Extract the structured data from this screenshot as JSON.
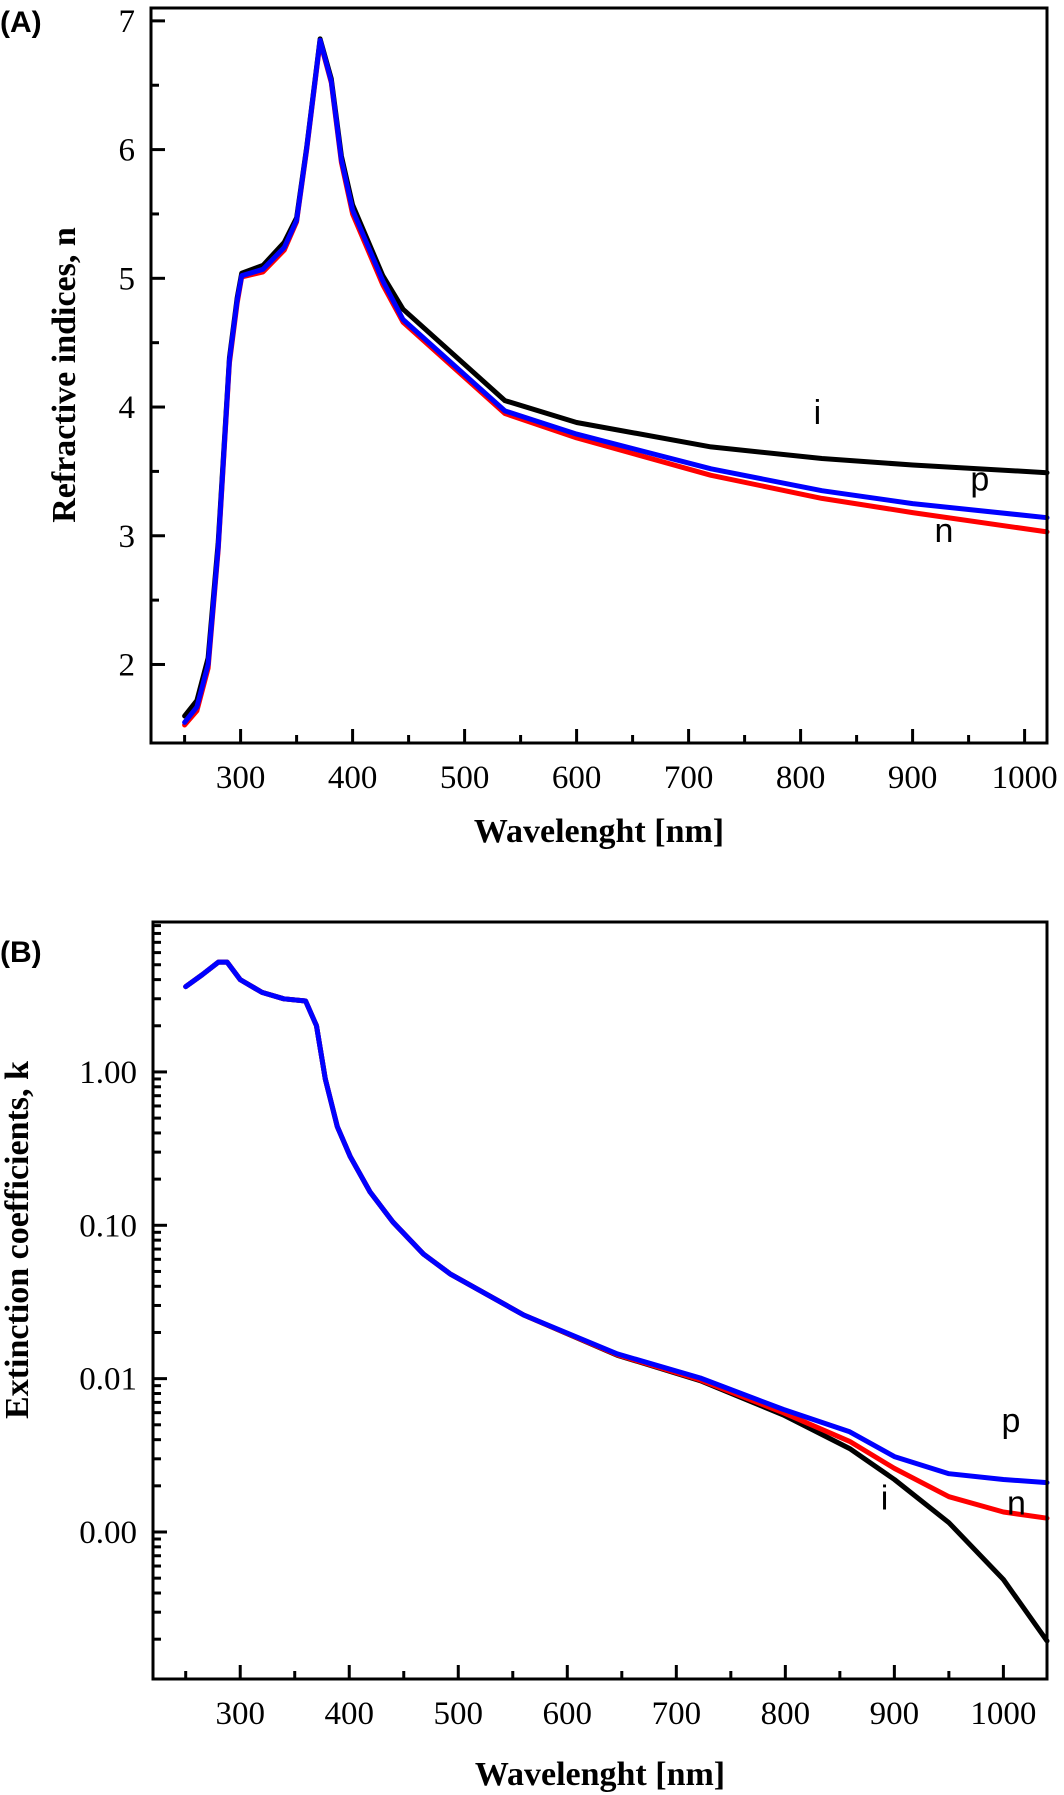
{
  "chart_data": [
    {
      "panel_label": "(A)",
      "type": "line",
      "title": "",
      "xlabel": "Wavelenght [nm]",
      "ylabel": "Refractive indices, n",
      "xlim": [
        220,
        1020
      ],
      "ylim": [
        1.39,
        7.1
      ],
      "yscale": "linear",
      "grid": false,
      "xticks": [
        300,
        400,
        500,
        600,
        700,
        800,
        900,
        1000
      ],
      "xtick_labels": [
        "300",
        "400",
        "500",
        "600",
        "700",
        "800",
        "900",
        "1000"
      ],
      "yticks": [
        2,
        3,
        4,
        5,
        6,
        7
      ],
      "ytick_labels": [
        "2",
        "3",
        "4",
        "5",
        "6",
        "7"
      ],
      "series": [
        {
          "name": "i",
          "color": "#000000",
          "x": [
            250,
            261,
            271,
            280,
            290,
            297,
            301,
            320,
            339,
            350,
            359,
            371,
            381,
            390,
            400,
            427,
            445,
            536,
            600,
            720,
            819,
            900,
            1020
          ],
          "y": [
            1.6,
            1.72,
            2.05,
            2.95,
            4.38,
            4.85,
            5.04,
            5.1,
            5.28,
            5.47,
            6.02,
            6.86,
            6.55,
            5.95,
            5.57,
            5.02,
            4.76,
            4.05,
            3.88,
            3.69,
            3.6,
            3.55,
            3.49
          ]
        },
        {
          "name": "n",
          "color": "#ff0000",
          "x": [
            250,
            261,
            271,
            280,
            290,
            297,
            301,
            320,
            339,
            350,
            359,
            371,
            381,
            390,
            400,
            427,
            445,
            536,
            600,
            720,
            819,
            900,
            1020
          ],
          "y": [
            1.53,
            1.64,
            1.97,
            2.89,
            4.34,
            4.81,
            5.01,
            5.05,
            5.22,
            5.44,
            6.0,
            6.84,
            6.52,
            5.9,
            5.5,
            4.95,
            4.66,
            3.95,
            3.76,
            3.47,
            3.29,
            3.18,
            3.03
          ]
        },
        {
          "name": "p",
          "color": "#0000ff",
          "x": [
            250,
            261,
            271,
            280,
            290,
            297,
            301,
            320,
            339,
            350,
            359,
            371,
            381,
            390,
            400,
            427,
            445,
            536,
            600,
            720,
            819,
            900,
            1020
          ],
          "y": [
            1.55,
            1.67,
            2.0,
            2.91,
            4.36,
            4.83,
            5.02,
            5.07,
            5.24,
            5.45,
            6.01,
            6.85,
            6.53,
            5.92,
            5.53,
            4.98,
            4.68,
            3.97,
            3.79,
            3.52,
            3.35,
            3.25,
            3.14
          ]
        }
      ],
      "annotations": [
        {
          "text": "i",
          "x": 815,
          "y": 3.87
        },
        {
          "text": "p",
          "x": 960,
          "y": 3.35
        },
        {
          "text": "n",
          "x": 928,
          "y": 2.95
        }
      ]
    },
    {
      "panel_label": "(B)",
      "type": "line",
      "title": "",
      "xlabel": "Wavelenght [nm]",
      "ylabel": "Extinction coefficients, k",
      "xlim": [
        220,
        1040
      ],
      "ylim": [
        0.00011,
        9.5
      ],
      "yscale": "log",
      "grid": false,
      "xticks": [
        300,
        400,
        500,
        600,
        700,
        800,
        900,
        1000
      ],
      "xtick_labels": [
        "300",
        "400",
        "500",
        "600",
        "700",
        "800",
        "900",
        "1000"
      ],
      "yticks": [
        1,
        0.1,
        0.01,
        0.001
      ],
      "ytick_labels": [
        "1.00",
        "0.10",
        "0.01",
        "0.00"
      ],
      "series": [
        {
          "name": "i",
          "color": "#000000",
          "x": [
            250,
            265,
            280,
            288,
            300,
            320,
            340,
            360,
            370,
            378,
            389,
            401,
            419,
            440,
            468,
            493,
            560,
            646,
            722,
            798,
            859,
            900,
            950,
            1000,
            1040
          ],
          "y": [
            3.6,
            4.3,
            5.2,
            5.2,
            4.0,
            3.3,
            3.0,
            2.9,
            2.0,
            0.9,
            0.44,
            0.28,
            0.165,
            0.105,
            0.065,
            0.048,
            0.026,
            0.0142,
            0.0097,
            0.0058,
            0.0035,
            0.0022,
            0.00115,
            0.00049,
            0.000195
          ]
        },
        {
          "name": "n",
          "color": "#ff0000",
          "x": [
            250,
            265,
            280,
            288,
            300,
            320,
            340,
            360,
            370,
            378,
            389,
            401,
            419,
            440,
            468,
            493,
            560,
            646,
            722,
            798,
            859,
            900,
            950,
            1000,
            1040
          ],
          "y": [
            3.6,
            4.3,
            5.2,
            5.2,
            4.0,
            3.3,
            3.0,
            2.9,
            2.0,
            0.9,
            0.44,
            0.28,
            0.165,
            0.105,
            0.065,
            0.048,
            0.026,
            0.0143,
            0.0098,
            0.006,
            0.0039,
            0.0026,
            0.0017,
            0.00135,
            0.00123
          ]
        },
        {
          "name": "p",
          "color": "#0000ff",
          "x": [
            250,
            265,
            280,
            288,
            300,
            320,
            340,
            360,
            370,
            378,
            389,
            401,
            419,
            440,
            468,
            493,
            560,
            646,
            722,
            798,
            859,
            900,
            950,
            1000,
            1040
          ],
          "y": [
            3.6,
            4.3,
            5.2,
            5.2,
            4.0,
            3.3,
            3.0,
            2.9,
            2.0,
            0.9,
            0.44,
            0.28,
            0.165,
            0.105,
            0.065,
            0.048,
            0.026,
            0.0145,
            0.0101,
            0.0063,
            0.0045,
            0.0031,
            0.0024,
            0.0022,
            0.0021
          ]
        }
      ],
      "annotations": [
        {
          "text": "p",
          "x": 1007,
          "y": 0.0045
        },
        {
          "text": "i",
          "x": 891,
          "y": 0.0014
        },
        {
          "text": "n",
          "x": 1012,
          "y": 0.0013
        }
      ]
    }
  ]
}
